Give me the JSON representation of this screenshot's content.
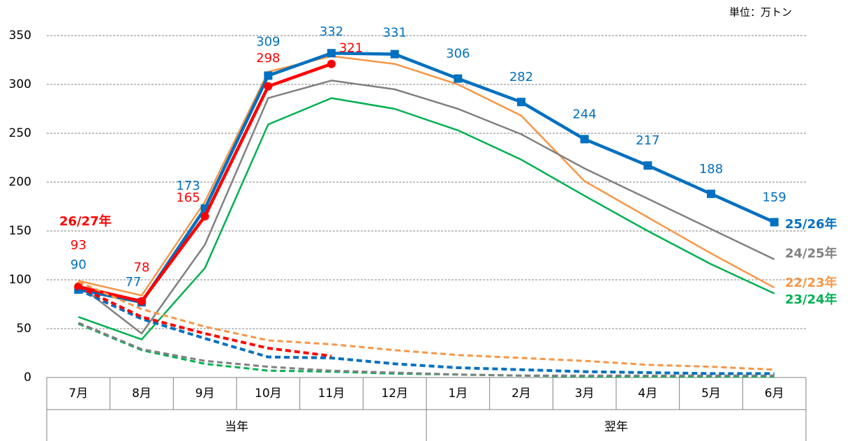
{
  "chart_data": {
    "type": "line",
    "unit": "単位：万トン",
    "categories": [
      "7月",
      "8月",
      "9月",
      "10月",
      "11月",
      "12月",
      "1月",
      "2月",
      "3月",
      "4月",
      "5月",
      "6月"
    ],
    "groups": [
      {
        "label": "当年",
        "span": 6
      },
      {
        "label": "翌年",
        "span": 6
      }
    ],
    "ylim": [
      0,
      350
    ],
    "yticks": [
      0,
      50,
      100,
      150,
      200,
      250,
      300,
      350
    ],
    "grid": true,
    "series": [
      {
        "name": "22/23年",
        "color": "#f79646",
        "values": [
          99,
          84,
          180,
          313,
          329,
          321,
          300,
          268,
          201,
          164,
          127,
          92
        ]
      },
      {
        "name": "23/24年",
        "color": "#00b050",
        "values": [
          62,
          39,
          112,
          259,
          286,
          275,
          253,
          223,
          186,
          150,
          116,
          86
        ]
      },
      {
        "name": "24/25年",
        "color": "#808080",
        "values": [
          95,
          45,
          136,
          286,
          304,
          295,
          275,
          249,
          214,
          183,
          152,
          121
        ]
      },
      {
        "name": "25/26年",
        "color": "#0070c0",
        "thick": true,
        "marker": "square",
        "data_labels": true,
        "values": [
          90,
          77,
          173,
          309,
          332,
          331,
          306,
          282,
          244,
          217,
          188,
          159
        ]
      },
      {
        "name": "26/27年",
        "color": "#ff0000",
        "thick": true,
        "marker": "circle",
        "data_labels": true,
        "values": [
          93,
          78,
          165,
          298,
          321,
          null,
          null,
          null,
          null,
          null,
          null,
          null
        ]
      },
      {
        "color": "#f79646",
        "dashed": true,
        "values": [
          98,
          70,
          52,
          38,
          34,
          28,
          23,
          20,
          17,
          13,
          11,
          8
        ]
      },
      {
        "color": "#00b050",
        "dashed": true,
        "values": [
          55,
          28,
          14,
          7,
          6,
          4,
          3,
          2,
          1,
          1,
          1,
          1
        ]
      },
      {
        "color": "#808080",
        "dashed": true,
        "values": [
          56,
          29,
          17,
          11,
          7,
          5,
          3,
          2,
          2,
          2,
          2,
          2
        ]
      },
      {
        "color": "#0070c0",
        "dashed": true,
        "thick": true,
        "values": [
          90,
          60,
          40,
          21,
          20,
          14,
          10,
          8,
          6,
          5,
          4,
          4
        ]
      },
      {
        "color": "#ff0000",
        "dashed": true,
        "thick": true,
        "values": [
          93,
          62,
          45,
          30,
          22,
          null,
          null,
          null,
          null,
          null,
          null,
          null
        ]
      }
    ]
  }
}
